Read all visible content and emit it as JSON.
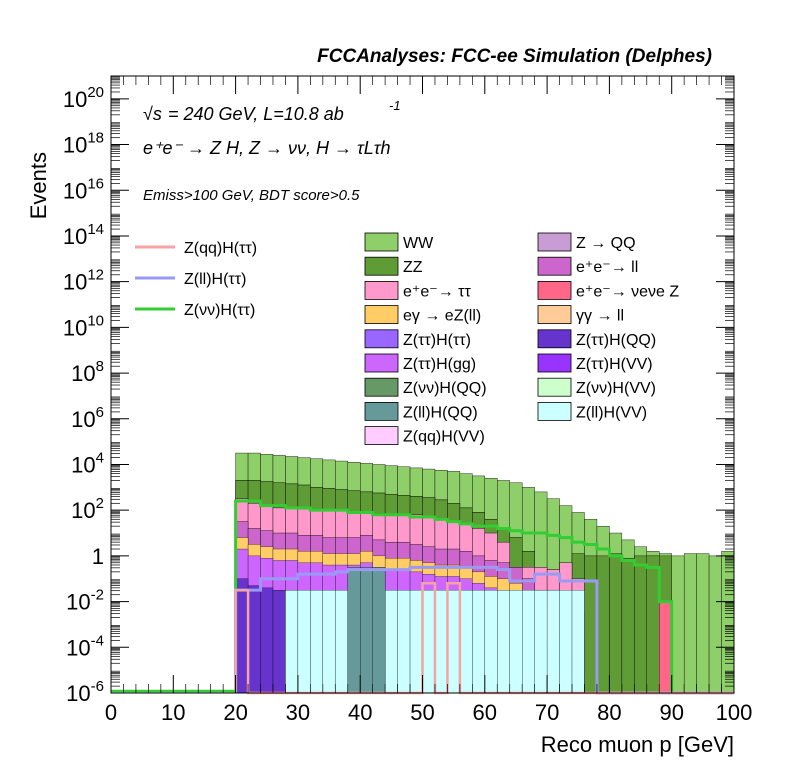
{
  "chart_data": {
    "type": "area",
    "title": "FCCAnalyses: FCC-ee Simulation (Delphes)",
    "xlabel": "Reco muon p [GeV]",
    "ylabel": "Events",
    "xlim": [
      0,
      100
    ],
    "ylim_log10": [
      -6,
      21
    ],
    "yscale": "log",
    "x_ticks": [
      "0",
      "10",
      "20",
      "30",
      "40",
      "50",
      "60",
      "70",
      "80",
      "90",
      "100"
    ],
    "y_ticks": [
      {
        "v": -6,
        "base": "10",
        "exp": "-6"
      },
      {
        "v": -4,
        "base": "10",
        "exp": "-4"
      },
      {
        "v": -2,
        "base": "10",
        "exp": "-2"
      },
      {
        "v": 0,
        "base": "1",
        "exp": ""
      },
      {
        "v": 2,
        "base": "10",
        "exp": "2"
      },
      {
        "v": 4,
        "base": "10",
        "exp": "4"
      },
      {
        "v": 6,
        "base": "10",
        "exp": "6"
      },
      {
        "v": 8,
        "base": "10",
        "exp": "8"
      },
      {
        "v": 10,
        "base": "10",
        "exp": "10"
      },
      {
        "v": 12,
        "base": "10",
        "exp": "12"
      },
      {
        "v": 14,
        "base": "10",
        "exp": "14"
      },
      {
        "v": 16,
        "base": "10",
        "exp": "16"
      },
      {
        "v": 18,
        "base": "10",
        "exp": "18"
      },
      {
        "v": 20,
        "base": "10",
        "exp": "20"
      }
    ],
    "annotations": {
      "energy": "= 240 GeV, L=10.8 ab",
      "energy_sqrt": "√s",
      "energy_exp": "-1",
      "process": "e⁺e⁻ → Z H, Z → νν, H → τLτh",
      "selection": "Emiss>100 GeV, BDT score>0.5"
    },
    "bin_edges_start": 20,
    "bin_width": 2,
    "stack_totals_log10": [
      4.5,
      4.5,
      4.45,
      4.4,
      4.35,
      4.3,
      4.25,
      4.2,
      4.15,
      4.1,
      4.05,
      4.0,
      3.95,
      3.9,
      3.85,
      3.8,
      3.75,
      3.7,
      3.6,
      3.5,
      3.4,
      3.3,
      3.2,
      3.0,
      2.8,
      2.5,
      2.2,
      1.9,
      1.6,
      1.3,
      1.0,
      0.7,
      0.4,
      0.2,
      0.1,
      0.0,
      0.1,
      0.1,
      0.0,
      0.2
    ],
    "ww_bottom_log10": [
      3.3,
      3.3,
      3.25,
      3.2,
      3.15,
      3.1,
      3.0,
      2.95,
      2.9,
      2.85,
      2.8,
      2.75,
      2.7,
      2.65,
      2.6,
      2.55,
      2.45,
      2.3,
      2.1,
      1.9,
      1.6,
      1.2,
      0.8,
      0.2,
      -0.5,
      -1.5,
      -3.0,
      -6,
      -6,
      -6,
      -6,
      -6,
      -6,
      -6,
      -6,
      -6,
      -6,
      -6,
      -6,
      -6
    ],
    "zz_top_log10": [
      3.3,
      3.3,
      3.25,
      3.2,
      3.15,
      3.1,
      3.0,
      2.95,
      2.9,
      2.85,
      2.8,
      2.75,
      2.7,
      2.65,
      2.6,
      2.55,
      2.45,
      2.3,
      2.1,
      1.9,
      1.6,
      1.2,
      0.8,
      0.2,
      -0.5,
      -0.6,
      -0.3,
      0.1,
      0.0,
      0.0,
      0.1,
      -0.1,
      0.0,
      0.0,
      -6,
      -6,
      -6,
      -6,
      -6,
      -6
    ],
    "ee_tautau_top_log10": [
      2.5,
      2.3,
      2.2,
      2.1,
      2.1,
      2.05,
      2.0,
      2.0,
      2.0,
      1.95,
      1.9,
      1.85,
      1.8,
      1.8,
      1.8,
      1.7,
      1.6,
      1.5,
      1.4,
      1.2,
      1.0,
      0.6,
      -0.5,
      -0.5,
      -0.5,
      -0.6,
      -0.3,
      -1.0,
      -6,
      -6,
      -6,
      -6,
      -6,
      -6,
      -6,
      -6,
      -6,
      -6,
      -6,
      -6
    ],
    "mid_stack_top_log10": [
      1.5,
      1.2,
      1.1,
      1.0,
      1.0,
      0.9,
      0.9,
      0.8,
      0.8,
      0.8,
      0.9,
      0.7,
      0.6,
      0.6,
      0.5,
      0.4,
      0.3,
      0.3,
      0.2,
      0.0,
      -0.2,
      -0.3,
      -0.5,
      -1.0,
      -1.5,
      -1.5,
      -2.0,
      -2.5,
      -6,
      -6,
      -6,
      -6,
      -6,
      -6,
      -6,
      -6,
      -6,
      -6,
      -6,
      -6
    ],
    "signal_vv_log10": [
      2.4,
      2.4,
      2.2,
      2.2,
      2.1,
      2.1,
      2.0,
      2.0,
      2.0,
      1.9,
      1.9,
      1.8,
      1.8,
      1.8,
      1.7,
      1.7,
      1.6,
      1.5,
      1.4,
      1.3,
      1.3,
      1.2,
      1.1,
      1.0,
      1.0,
      0.9,
      0.8,
      0.6,
      0.5,
      0.3,
      0.0,
      -0.2,
      -0.4,
      -0.5,
      -2.0,
      -6,
      -6,
      -6,
      -6,
      -6
    ],
    "signal_ll_log10": [
      -1.5,
      -1.5,
      -1.0,
      -1.0,
      -1.0,
      -0.8,
      -0.8,
      -0.8,
      -0.7,
      -0.6,
      -0.6,
      -0.6,
      -0.6,
      -0.6,
      -0.5,
      -0.5,
      -0.5,
      -0.5,
      -0.5,
      -0.5,
      -0.5,
      -0.6,
      -1.1,
      -1.1,
      -0.8,
      -0.8,
      -1.1,
      -1.1,
      -1.1,
      -6,
      -6,
      -6,
      -6,
      -6,
      -6,
      -6,
      -6,
      -6,
      -6,
      -6
    ],
    "signal_qq_log10": [
      -1.5,
      -6,
      -6,
      -6,
      -6,
      -6,
      -6,
      -6,
      -6,
      -6,
      -6,
      -6,
      -6,
      -6,
      -6,
      -1.2,
      -6,
      -1.2,
      -6,
      -6,
      -6,
      -6,
      -6,
      -6,
      -6,
      -6,
      -6,
      -6,
      -6,
      -6,
      -6,
      -6,
      -6,
      -6,
      -6,
      -6,
      -6,
      -6,
      -6,
      -6
    ],
    "legend_left": [
      {
        "label": "Z(qq)H(ττ)",
        "color": "#f5a3a3"
      },
      {
        "label": "Z(ll)H(ττ)",
        "color": "#9a9af5"
      },
      {
        "label": "Z(νν)H(ττ)",
        "color": "#33cc33"
      }
    ],
    "legend_right": [
      {
        "label": "WW",
        "color": "#8fcf6a"
      },
      {
        "label": "Z → QQ",
        "color": "#c99cd6"
      },
      {
        "label": "ZZ",
        "color": "#5f9c35"
      },
      {
        "label": "e⁺e⁻→ ll",
        "color": "#cc66cc"
      },
      {
        "label": "e⁺e⁻→ ττ",
        "color": "#ff99cc"
      },
      {
        "label": "e⁺e⁻→ νeνe Z",
        "color": "#ff6688"
      },
      {
        "label": "eγ → eZ(ll)",
        "color": "#ffcc66"
      },
      {
        "label": "γγ → ll",
        "color": "#ffcc99"
      },
      {
        "label": "Z(ττ)H(ττ)",
        "color": "#9966ff"
      },
      {
        "label": "Z(ττ)H(QQ)",
        "color": "#6633cc"
      },
      {
        "label": "Z(ττ)H(gg)",
        "color": "#cc66ff"
      },
      {
        "label": "Z(ττ)H(VV)",
        "color": "#9933ff"
      },
      {
        "label": "Z(νν)H(QQ)",
        "color": "#669966"
      },
      {
        "label": "Z(νν)H(VV)",
        "color": "#ccffcc"
      },
      {
        "label": "Z(ll)H(QQ)",
        "color": "#669999"
      },
      {
        "label": "Z(ll)H(VV)",
        "color": "#ccffff"
      },
      {
        "label": "Z(qq)H(VV)",
        "color": "#ffccff"
      }
    ]
  }
}
